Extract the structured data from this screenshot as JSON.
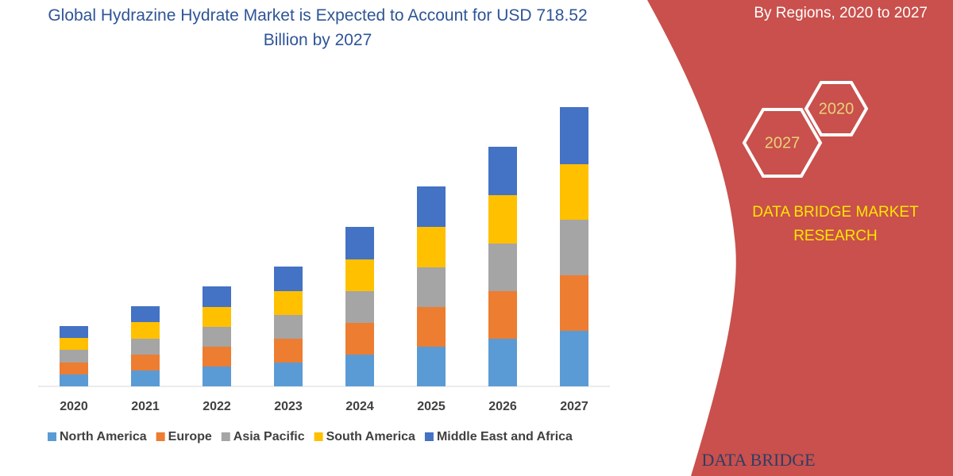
{
  "chart_data": {
    "type": "stacked-bar",
    "title": "Global Hydrazine Hydrate Market is Expected to Account for USD 718.52 Billion by 2027",
    "categories": [
      "2020",
      "2021",
      "2022",
      "2023",
      "2024",
      "2025",
      "2026",
      "2027"
    ],
    "series": [
      {
        "name": "North America",
        "color": "#5b9bd5",
        "values": [
          15,
          20,
          25,
          30,
          40,
          50,
          60,
          70
        ]
      },
      {
        "name": "Europe",
        "color": "#ed7d31",
        "values": [
          15,
          20,
          25,
          30,
          40,
          50,
          60,
          70
        ]
      },
      {
        "name": "Asia Pacific",
        "color": "#a5a5a5",
        "values": [
          16,
          20,
          25,
          30,
          40,
          50,
          60,
          70
        ]
      },
      {
        "name": "South America",
        "color": "#ffc000",
        "values": [
          15,
          21,
          25,
          30,
          40,
          51,
          61,
          70
        ]
      },
      {
        "name": "Middle East and Africa",
        "color": "#4472c4",
        "values": [
          15,
          20,
          26,
          31,
          41,
          51,
          61,
          72
        ]
      }
    ]
  },
  "side_heading": "By Regions, 2020 to 2027",
  "badges": [
    "2020",
    "2027"
  ],
  "brand": [
    "DATA BRIDGE MARKET",
    "RESEARCH"
  ],
  "logo_text": "DATA BRIDGE"
}
